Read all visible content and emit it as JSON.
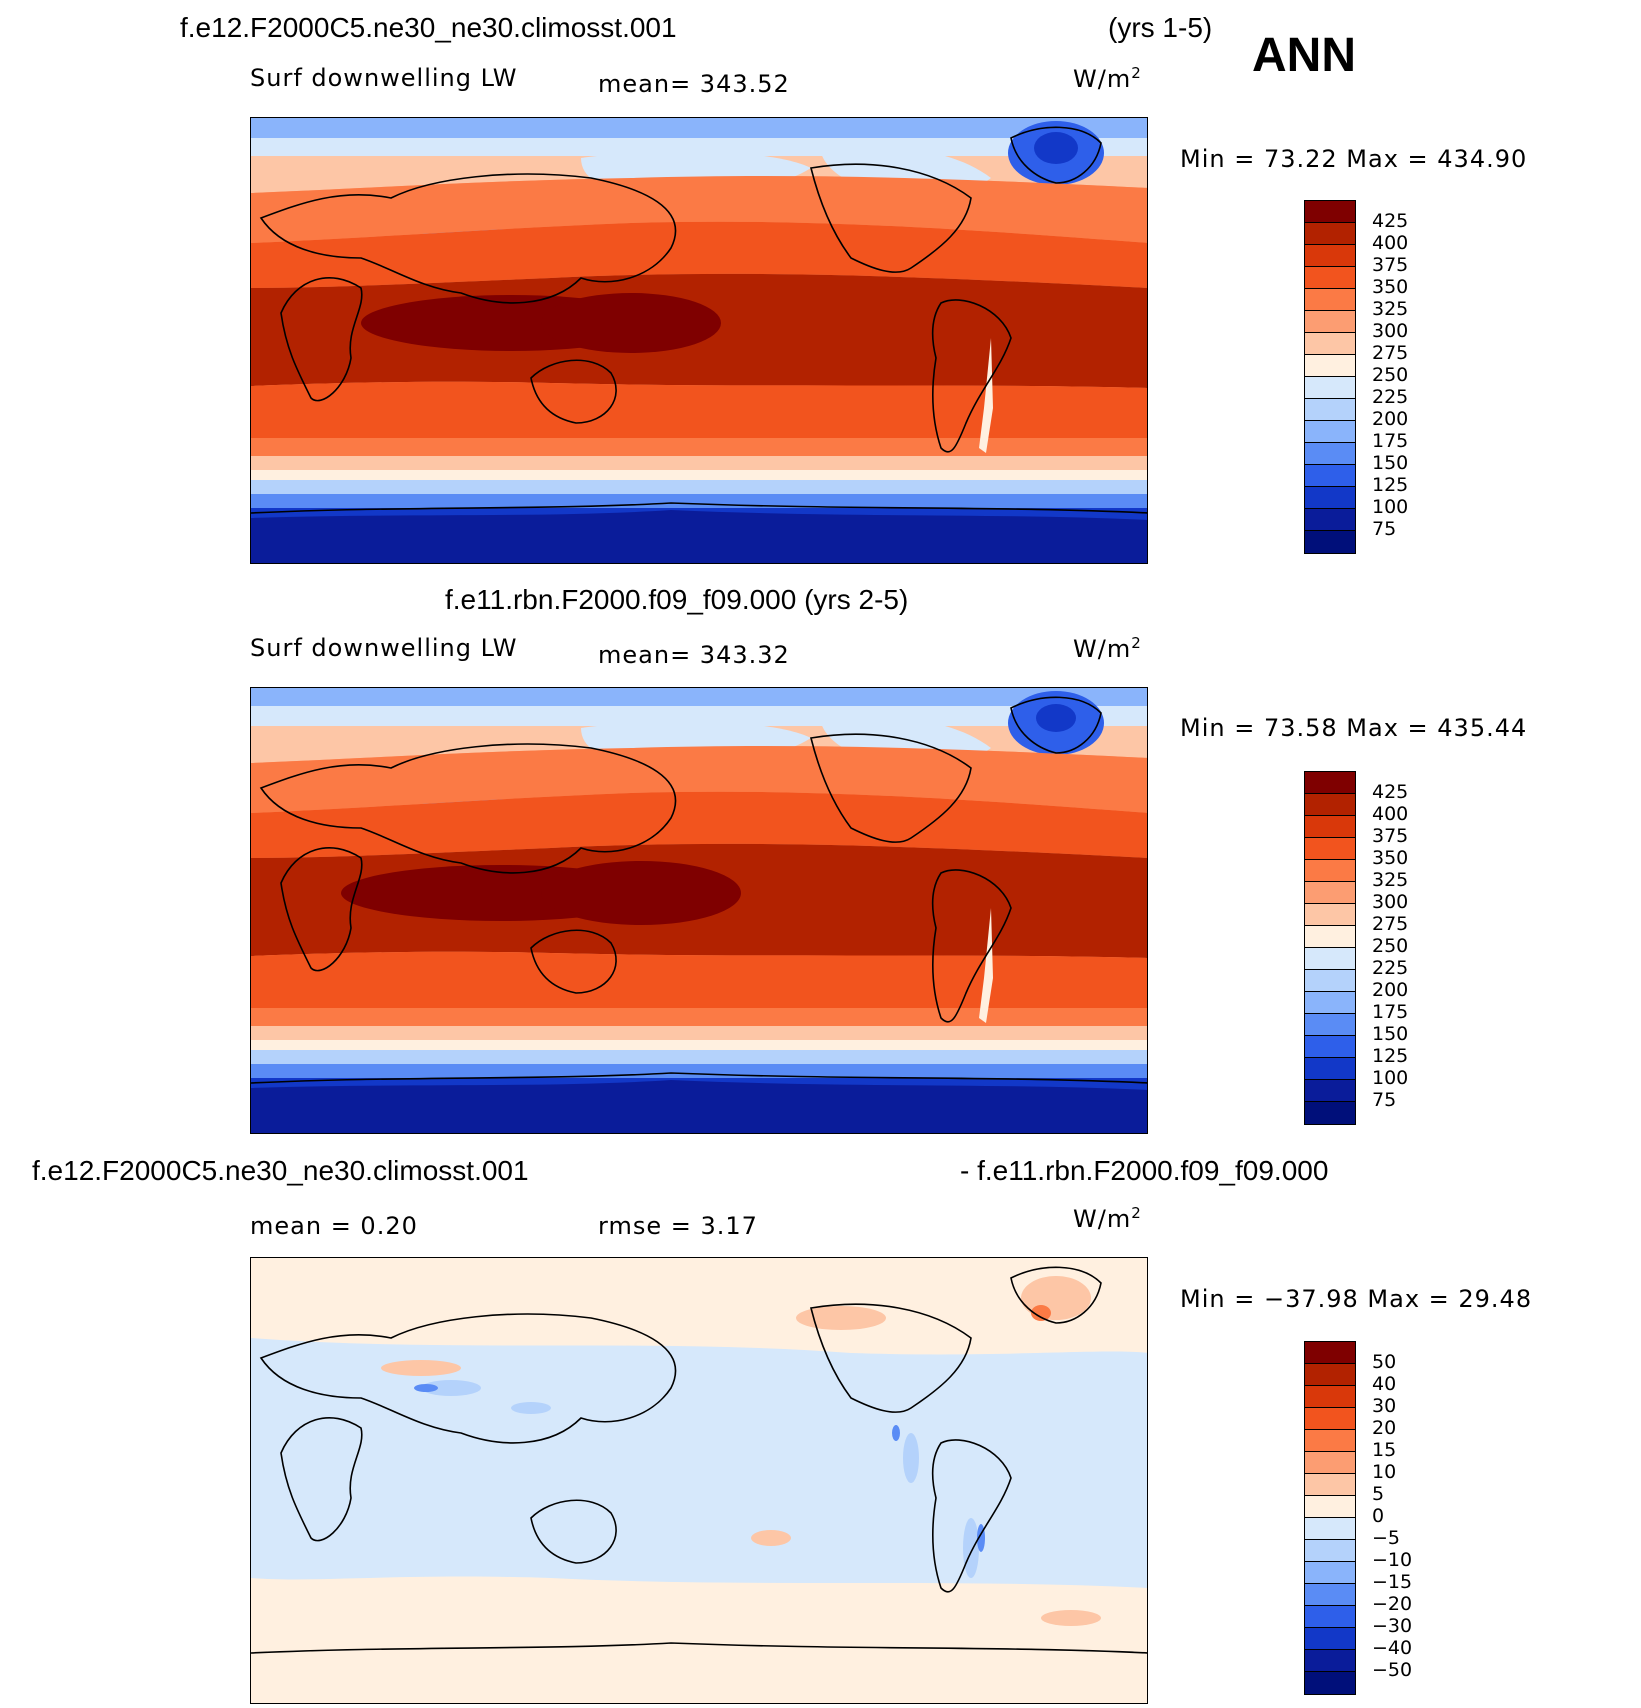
{
  "season": "ANN",
  "panels": [
    {
      "case_title": "f.e12.F2000C5.ne30_ne30.climosst.001",
      "years": "(yrs 1-5)",
      "variable": "Surf downwelling LW",
      "stat": "mean= 343.52",
      "units": "W/m",
      "units_sup": "2",
      "minmax": "Min =   73.22 Max =  434.90",
      "colorbar": {
        "labels": [
          "425",
          "400",
          "375",
          "350",
          "325",
          "300",
          "275",
          "250",
          "225",
          "200",
          "175",
          "150",
          "125",
          "100",
          "75"
        ],
        "colors": [
          "#7f0000",
          "#b22200",
          "#d9380a",
          "#f2541e",
          "#fb7a45",
          "#fc9d72",
          "#fdc6a6",
          "#fff0e0",
          "#d6e8fb",
          "#b4d2fb",
          "#8ab4fb",
          "#5a8cf5",
          "#2e5fea",
          "#1238c8",
          "#0a1c9a",
          "#000f7a"
        ]
      },
      "map_description_colors": {
        "polar": "#1236c8",
        "tropics": "#b22200"
      }
    },
    {
      "case_title": "f.e11.rbn.F2000.f09_f09.000 (yrs 2-5)",
      "variable": "Surf downwelling LW",
      "stat": "mean= 343.32",
      "units": "W/m",
      "units_sup": "2",
      "minmax": "Min =   73.58 Max =  435.44",
      "colorbar": {
        "labels": [
          "425",
          "400",
          "375",
          "350",
          "325",
          "300",
          "275",
          "250",
          "225",
          "200",
          "175",
          "150",
          "125",
          "100",
          "75"
        ],
        "colors": [
          "#7f0000",
          "#b22200",
          "#d9380a",
          "#f2541e",
          "#fb7a45",
          "#fc9d72",
          "#fdc6a6",
          "#fff0e0",
          "#d6e8fb",
          "#b4d2fb",
          "#8ab4fb",
          "#5a8cf5",
          "#2e5fea",
          "#1238c8",
          "#0a1c9a",
          "#000f7a"
        ]
      }
    },
    {
      "case_title": "f.e12.F2000C5.ne30_ne30.climosst.001",
      "case_title_right": "- f.e11.rbn.F2000.f09_f09.000",
      "stat": "mean =    0.20",
      "stat2": "rmse =    3.17",
      "units": "W/m",
      "units_sup": "2",
      "minmax": "Min = −37.98 Max =   29.48",
      "colorbar": {
        "labels": [
          "50",
          "40",
          "30",
          "20",
          "15",
          "10",
          "5",
          "0",
          "−5",
          "−10",
          "−15",
          "−20",
          "−30",
          "−40",
          "−50"
        ],
        "colors": [
          "#7f0000",
          "#b22200",
          "#d9380a",
          "#f2541e",
          "#fb7a45",
          "#fc9d72",
          "#fdc6a6",
          "#fff0e0",
          "#d6e8fb",
          "#b4d2fb",
          "#8ab4fb",
          "#5a8cf5",
          "#2e5fea",
          "#1238c8",
          "#0a1c9a",
          "#000f7a"
        ]
      }
    }
  ]
}
